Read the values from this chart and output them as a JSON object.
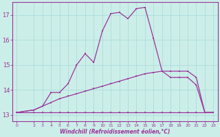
{
  "xlabel": "Windchill (Refroidissement éolien,°C)",
  "x_ticks": [
    0,
    2,
    3,
    4,
    5,
    6,
    7,
    8,
    9,
    10,
    11,
    12,
    13,
    14,
    15,
    16,
    17,
    18,
    19,
    20,
    21,
    22,
    23
  ],
  "ylim": [
    12.75,
    17.5
  ],
  "xlim": [
    -0.5,
    23.5
  ],
  "yticks": [
    13,
    14,
    15,
    16,
    17
  ],
  "background_color": "#cceee8",
  "grid_color": "#aadddd",
  "line_color": "#993399",
  "line1_x": [
    0,
    2,
    3,
    4,
    5,
    6,
    7,
    8,
    9,
    10,
    11,
    12,
    13,
    14,
    15,
    16,
    17,
    18,
    19,
    20,
    21,
    22,
    23
  ],
  "line1_y": [
    13.1,
    13.1,
    13.1,
    13.1,
    13.1,
    13.1,
    13.1,
    13.1,
    13.1,
    13.1,
    13.1,
    13.1,
    13.1,
    13.1,
    13.1,
    13.1,
    13.1,
    13.1,
    13.1,
    13.1,
    13.1,
    13.1,
    13.1
  ],
  "line2_x": [
    0,
    2,
    3,
    4,
    5,
    6,
    7,
    8,
    9,
    10,
    11,
    12,
    13,
    14,
    15,
    16,
    17,
    18,
    19,
    20,
    21,
    22,
    23
  ],
  "line2_y": [
    13.1,
    13.2,
    13.35,
    13.5,
    13.65,
    13.75,
    13.85,
    13.95,
    14.05,
    14.15,
    14.25,
    14.35,
    14.45,
    14.55,
    14.65,
    14.7,
    14.75,
    14.75,
    14.75,
    14.75,
    14.5,
    13.1,
    13.1
  ],
  "line3_x": [
    0,
    2,
    3,
    4,
    5,
    6,
    7,
    8,
    9,
    10,
    11,
    12,
    13,
    14,
    15,
    16,
    17,
    18,
    19,
    20,
    21,
    22,
    23
  ],
  "line3_y": [
    13.1,
    13.2,
    13.35,
    13.9,
    13.9,
    14.25,
    15.0,
    15.45,
    15.1,
    16.35,
    17.05,
    17.1,
    16.85,
    17.25,
    17.3,
    16.05,
    14.75,
    14.5,
    14.5,
    14.5,
    14.2,
    13.1,
    13.1
  ]
}
